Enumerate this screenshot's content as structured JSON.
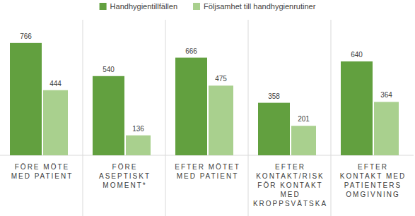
{
  "chart_data": {
    "type": "bar",
    "categories": [
      "FÖRE MÖTE MED PATIENT",
      "FÖRE ASEPTISKT MOMENT*",
      "EFTER MÖTET MED PATIENT",
      "EFTER KONTAKT/RISK FÖR KONTAKT MED KROPPSVÄTSKA",
      "EFTER KONTAKT MED PATIENTERS OMGIVNING"
    ],
    "series": [
      {
        "name": "Handhygientillfällen",
        "color": "#62a03f",
        "values": [
          766,
          540,
          666,
          358,
          640
        ]
      },
      {
        "name": "Följsamhet till handhygienrutiner",
        "color": "#a9d08e",
        "values": [
          444,
          136,
          475,
          201,
          364
        ]
      }
    ],
    "ylim": [
      0,
      900
    ],
    "tick_labels": "x",
    "grid": false,
    "data_labels": true,
    "legend": "top"
  }
}
